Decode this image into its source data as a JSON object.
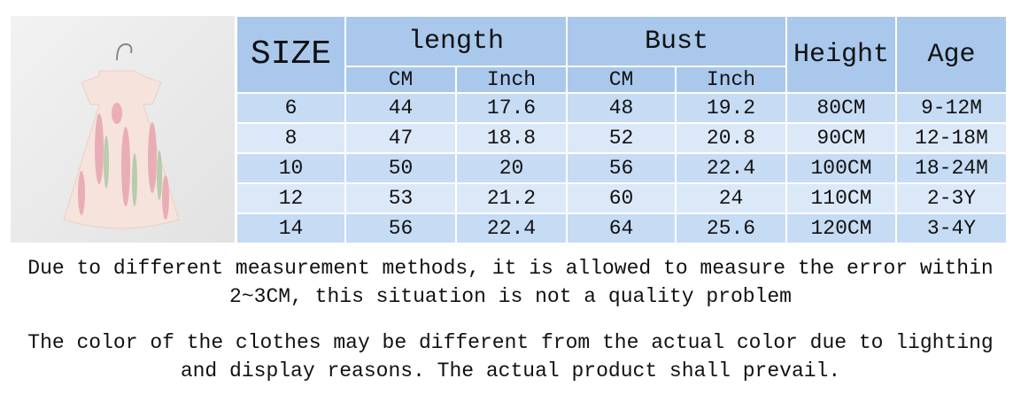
{
  "table": {
    "header": {
      "size": "SIZE",
      "length": "length",
      "bust": "Bust",
      "height": "Height",
      "age": "Age"
    },
    "subheader": [
      "CM",
      "Inch",
      "CM",
      "Inch"
    ],
    "rows": [
      [
        "6",
        "44",
        "17.6",
        "48",
        "19.2",
        "80CM",
        "9-12M"
      ],
      [
        "8",
        "47",
        "18.8",
        "52",
        "20.8",
        "90CM",
        "12-18M"
      ],
      [
        "10",
        "50",
        "20",
        "56",
        "22.4",
        "100CM",
        "18-24M"
      ],
      [
        "12",
        "53",
        "21.2",
        "60",
        "24",
        "110CM",
        "2-3Y"
      ],
      [
        "14",
        "56",
        "22.4",
        "64",
        "25.6",
        "120CM",
        "3-4Y"
      ]
    ]
  },
  "notes": [
    "Due to different measurement methods, it is allowed to measure the error within 2~3CM, this situation is not a quality problem",
    "The color of the clothes may be different from the actual color due to lighting and display reasons. The actual product shall prevail."
  ]
}
